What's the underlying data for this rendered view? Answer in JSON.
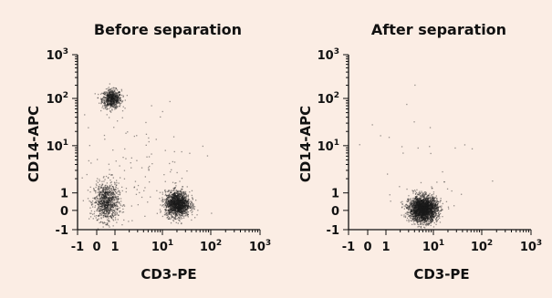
{
  "chart_data": [
    {
      "type": "scatter",
      "title": "Before separation",
      "xlabel": "CD3-PE",
      "ylabel": "CD14-APC",
      "x_scale": "biexponential",
      "y_scale": "biexponential",
      "xlim": [
        -1,
        1000
      ],
      "ylim": [
        -1,
        1000
      ],
      "x_ticks": [
        {
          "value": -1,
          "base": "-1",
          "exp": ""
        },
        {
          "value": 0,
          "base": "0",
          "exp": ""
        },
        {
          "value": 1,
          "base": "1",
          "exp": ""
        },
        {
          "value": 10,
          "base": "10",
          "exp": "1"
        },
        {
          "value": 100,
          "base": "10",
          "exp": "2"
        },
        {
          "value": 1000,
          "base": "10",
          "exp": "3"
        }
      ],
      "y_ticks": [
        {
          "value": -1,
          "base": "-1",
          "exp": ""
        },
        {
          "value": 0,
          "base": "0",
          "exp": ""
        },
        {
          "value": 1,
          "base": "1",
          "exp": ""
        },
        {
          "value": 10,
          "base": "10",
          "exp": "1"
        },
        {
          "value": 100,
          "base": "10",
          "exp": "2"
        },
        {
          "value": 1000,
          "base": "10",
          "exp": "3"
        }
      ],
      "grid": false,
      "point_color": "#1a1a1a",
      "series": [
        {
          "center_x": 0.8,
          "center_y": 100,
          "spread_x": 0.22,
          "spread_y": 0.22,
          "count": 700
        },
        {
          "center_x": 0.5,
          "center_y": 0.5,
          "spread_x": 0.28,
          "spread_y": 0.45,
          "count": 900
        },
        {
          "center_x": 20,
          "center_y": 0.4,
          "spread_x": 0.28,
          "spread_y": 0.3,
          "count": 1600
        },
        {
          "center_x": 3,
          "center_y": 3,
          "spread_x": 1.4,
          "spread_y": 1.4,
          "count": 120
        }
      ]
    },
    {
      "type": "scatter",
      "title": "After separation",
      "xlabel": "CD3-PE",
      "ylabel": "CD14-APC",
      "x_scale": "biexponential",
      "y_scale": "biexponential",
      "xlim": [
        -1,
        1000
      ],
      "ylim": [
        -1,
        1000
      ],
      "x_ticks": [
        {
          "value": -1,
          "base": "-1",
          "exp": ""
        },
        {
          "value": 0,
          "base": "0",
          "exp": ""
        },
        {
          "value": 1,
          "base": "1",
          "exp": ""
        },
        {
          "value": 10,
          "base": "10",
          "exp": "1"
        },
        {
          "value": 100,
          "base": "10",
          "exp": "2"
        },
        {
          "value": 1000,
          "base": "10",
          "exp": "3"
        }
      ],
      "y_ticks": [
        {
          "value": -1,
          "base": "-1",
          "exp": ""
        },
        {
          "value": 0,
          "base": "0",
          "exp": ""
        },
        {
          "value": 1,
          "base": "1",
          "exp": ""
        },
        {
          "value": 10,
          "base": "10",
          "exp": "1"
        },
        {
          "value": 100,
          "base": "10",
          "exp": "2"
        },
        {
          "value": 1000,
          "base": "10",
          "exp": "3"
        }
      ],
      "grid": false,
      "point_color": "#1a1a1a",
      "series": [
        {
          "center_x": 6,
          "center_y": 0.1,
          "spread_x": 0.32,
          "spread_y": 0.3,
          "count": 2600
        },
        {
          "center_x": 5,
          "center_y": 5,
          "spread_x": 1.5,
          "spread_y": 1.5,
          "count": 40
        }
      ]
    }
  ]
}
